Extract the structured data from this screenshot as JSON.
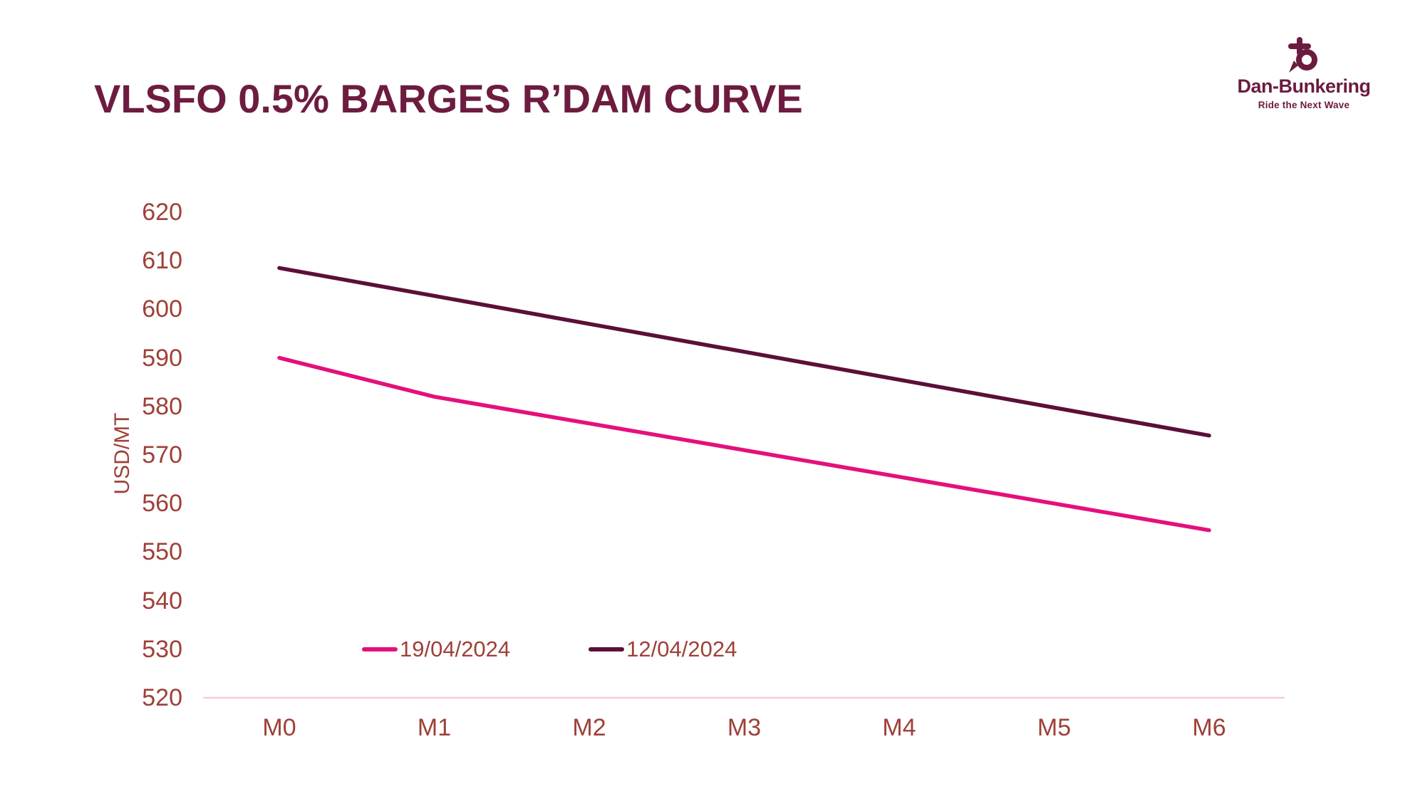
{
  "title": "VLSFO 0.5% BARGES R’DAM CURVE",
  "brand": {
    "name": "Dan-Bunkering",
    "tagline": "Ride the Next Wave",
    "color": "#6B1B40"
  },
  "chart_data": {
    "type": "line",
    "title": "VLSFO 0.5% BARGES R’DAM CURVE",
    "categories": [
      "M0",
      "M1",
      "M2",
      "M3",
      "M4",
      "M5",
      "M6"
    ],
    "series": [
      {
        "name": "19/04/2024",
        "color": "#E4107C",
        "values": [
          590,
          582,
          576.5,
          571,
          565.5,
          560,
          554.5
        ]
      },
      {
        "name": "12/04/2024",
        "color": "#5C0F38",
        "values": [
          608.5,
          602.75,
          597,
          591.25,
          585.5,
          579.75,
          574
        ]
      }
    ],
    "xlabel": "",
    "ylabel": "USD/MT",
    "ylim": [
      520,
      620
    ],
    "ytick_step": 10,
    "yticks": [
      520,
      530,
      540,
      550,
      560,
      570,
      580,
      590,
      600,
      610,
      620
    ],
    "grid": false,
    "legend_position": "bottom-center",
    "colors": {
      "title": "#6D1C40",
      "tick_label": "#9E4038",
      "axis_line": "#F8CCDF"
    }
  }
}
